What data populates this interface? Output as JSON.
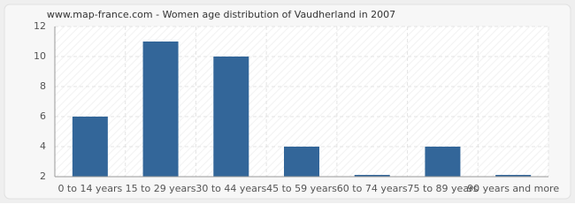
{
  "chart_data": {
    "type": "bar",
    "title": "www.map-france.com - Women age distribution of Vaudherland in 2007",
    "categories": [
      "0 to 14 years",
      "15 to 29 years",
      "30 to 44 years",
      "45 to 59 years",
      "60 to 74 years",
      "75 to 89 years",
      "90 years and more"
    ],
    "values": [
      6,
      11,
      10,
      4,
      2,
      4,
      2
    ],
    "color": "#336699",
    "ylim": [
      2,
      12
    ],
    "yticks": [
      2,
      4,
      6,
      8,
      10,
      12
    ],
    "grid": true
  }
}
